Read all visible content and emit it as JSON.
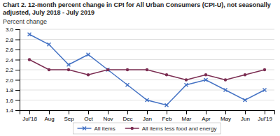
{
  "chart_data": {
    "type": "line",
    "title": "Chart 2. 12-month percent change in CPI for All Urban Consumers (CPI-U), not seasonally adjusted, July 2018 - July 2019",
    "ylabel": "Percent change",
    "categories": [
      "Jul'18",
      "Aug",
      "Sep",
      "Oct",
      "Nov",
      "Dec",
      "Jan",
      "Feb",
      "Mar",
      "Apr",
      "May",
      "Jun",
      "Jul'19"
    ],
    "series": [
      {
        "name": "All items",
        "color": "#4472c4",
        "marker": "x",
        "line_style": "solid",
        "values": [
          2.9,
          2.7,
          2.3,
          2.5,
          2.2,
          1.9,
          1.6,
          1.5,
          1.9,
          2.0,
          1.8,
          1.6,
          1.8
        ]
      },
      {
        "name": "All items less food and energy",
        "color": "#7b2d52",
        "marker": "circle",
        "line_style": "solid",
        "values": [
          2.4,
          2.2,
          2.2,
          2.1,
          2.2,
          2.2,
          2.2,
          2.1,
          2.0,
          2.1,
          2.0,
          2.1,
          2.2
        ]
      }
    ],
    "ylim": [
      1.4,
      3.0
    ],
    "yticks": [
      1.4,
      1.6,
      1.8,
      {
        "value": 2.0,
        "label": "2.0"
      },
      2.2,
      2.4,
      2.6,
      2.8,
      {
        "value": 3.0,
        "label": "3.0"
      }
    ],
    "grid": true,
    "legend": "bottom"
  }
}
